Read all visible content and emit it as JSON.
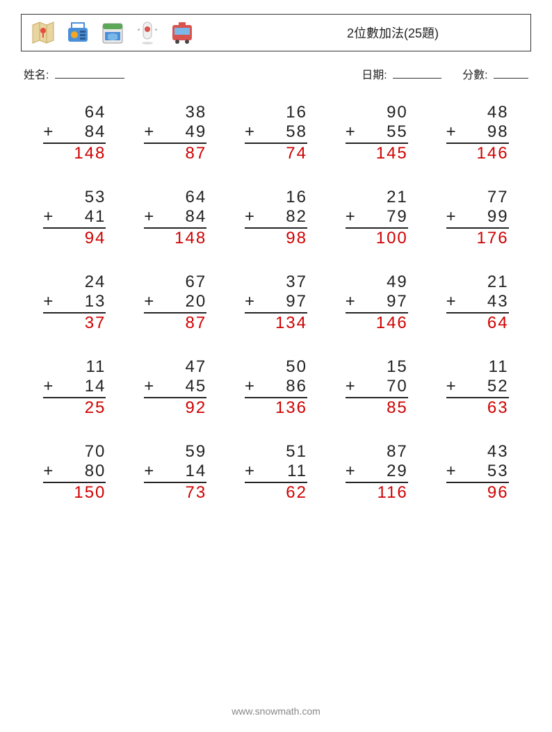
{
  "header": {
    "title": "2位數加法(25題)",
    "icons": [
      {
        "name": "map-icon",
        "colors": {
          "bg": "#e8d5a0",
          "accent": "#e74c3c"
        }
      },
      {
        "name": "radio-icon",
        "colors": {
          "bg": "#4a90d9",
          "accent": "#f5a623"
        }
      },
      {
        "name": "calendar-icon",
        "colors": {
          "bg": "#5ba858",
          "accent": "#4a90d9"
        }
      },
      {
        "name": "location-icon",
        "colors": {
          "bg": "#e8e8e8",
          "accent": "#d9534f"
        }
      },
      {
        "name": "bus-icon",
        "colors": {
          "bg": "#d9534f",
          "accent": "#4a90d9"
        }
      }
    ]
  },
  "info": {
    "name_label": "姓名:",
    "date_label": "日期:",
    "score_label": "分數:"
  },
  "operator": "+",
  "problems": [
    {
      "a": 64,
      "b": 84,
      "ans": 148
    },
    {
      "a": 38,
      "b": 49,
      "ans": 87
    },
    {
      "a": 16,
      "b": 58,
      "ans": 74
    },
    {
      "a": 90,
      "b": 55,
      "ans": 145
    },
    {
      "a": 48,
      "b": 98,
      "ans": 146
    },
    {
      "a": 53,
      "b": 41,
      "ans": 94
    },
    {
      "a": 64,
      "b": 84,
      "ans": 148
    },
    {
      "a": 16,
      "b": 82,
      "ans": 98
    },
    {
      "a": 21,
      "b": 79,
      "ans": 100
    },
    {
      "a": 77,
      "b": 99,
      "ans": 176
    },
    {
      "a": 24,
      "b": 13,
      "ans": 37
    },
    {
      "a": 67,
      "b": 20,
      "ans": 87
    },
    {
      "a": 37,
      "b": 97,
      "ans": 134
    },
    {
      "a": 49,
      "b": 97,
      "ans": 146
    },
    {
      "a": 21,
      "b": 43,
      "ans": 64
    },
    {
      "a": 11,
      "b": 14,
      "ans": 25
    },
    {
      "a": 47,
      "b": 45,
      "ans": 92
    },
    {
      "a": 50,
      "b": 86,
      "ans": 136
    },
    {
      "a": 15,
      "b": 70,
      "ans": 85
    },
    {
      "a": 11,
      "b": 52,
      "ans": 63
    },
    {
      "a": 70,
      "b": 80,
      "ans": 150
    },
    {
      "a": 59,
      "b": 14,
      "ans": 73
    },
    {
      "a": 51,
      "b": 11,
      "ans": 62
    },
    {
      "a": 87,
      "b": 29,
      "ans": 116
    },
    {
      "a": 43,
      "b": 53,
      "ans": 96
    }
  ],
  "footer": {
    "url": "www.snowmath.com"
  },
  "style": {
    "text_color": "#222222",
    "answer_color": "#d00000",
    "background_color": "#ffffff",
    "border_color": "#333333",
    "footer_color": "#888888",
    "problem_fontsize": 24,
    "label_fontsize": 16,
    "title_fontsize": 18
  }
}
